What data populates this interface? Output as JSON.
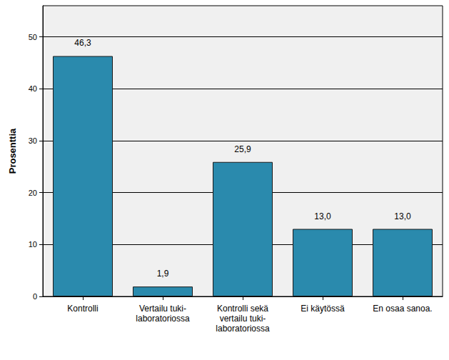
{
  "chart_data": {
    "type": "bar",
    "categories": [
      "Kontrolli",
      "Vertailu tuki-laboratoriossa",
      "Kontrolli sekä vertailu tuki-laboratoriossa",
      "Ei käytössä",
      "En osaa sanoa."
    ],
    "values": [
      46.3,
      1.9,
      25.9,
      13.0,
      13.0
    ],
    "value_labels": [
      "46,3",
      "1,9",
      "25,9",
      "13,0",
      "13,0"
    ],
    "color": "#2a8aad",
    "ylabel": "Prosenttia",
    "ylim": [
      0,
      56
    ],
    "yticks": [
      0,
      10,
      20,
      30,
      40,
      50
    ],
    "grid": true,
    "data_labels": true
  }
}
